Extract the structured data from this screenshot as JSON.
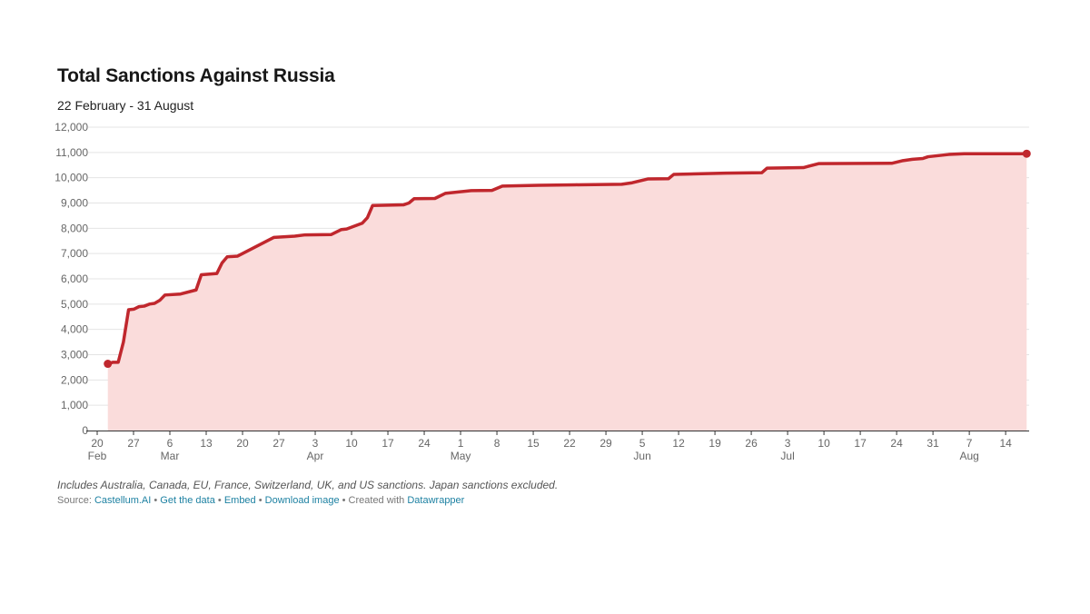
{
  "title": "Total Sanctions Against Russia",
  "subtitle": "22 February - 31 August",
  "notes": "Includes Australia, Canada, EU, France, Switzerland, UK, and US sanctions. Japan sanctions excluded.",
  "source": {
    "prefix": "Source: ",
    "source_name": "Castellum.AI",
    "sep1": " • ",
    "get_data": "Get the data",
    "sep2": " • ",
    "embed": "Embed",
    "sep3": " • ",
    "download": "Download image",
    "sep4": " • Created with ",
    "tool": "Datawrapper"
  },
  "colors": {
    "line": "#c0272d",
    "area": "#fadcdb",
    "grid": "#e4e4e4",
    "axis": "#333333",
    "link": "#1d81a2"
  },
  "chart_data": {
    "type": "area",
    "title": "Total Sanctions Against Russia",
    "subtitle": "22 February - 31 August",
    "xlabel": "",
    "ylabel": "",
    "ylim": [
      0,
      12000
    ],
    "yticks": [
      0,
      1000,
      2000,
      3000,
      4000,
      5000,
      6000,
      7000,
      8000,
      9000,
      10000,
      11000,
      12000
    ],
    "ytick_labels": [
      "0",
      "1,000",
      "2,000",
      "3,000",
      "4,000",
      "5,000",
      "6,000",
      "7,000",
      "8,000",
      "9,000",
      "10,000",
      "11,000",
      "12,000"
    ],
    "xlim": [
      "2022-02-20",
      "2022-08-21"
    ],
    "xticks": [
      {
        "date": "2022-02-20",
        "day": "20",
        "month": "Feb"
      },
      {
        "date": "2022-02-27",
        "day": "27",
        "month": ""
      },
      {
        "date": "2022-03-06",
        "day": "6",
        "month": "Mar"
      },
      {
        "date": "2022-03-13",
        "day": "13",
        "month": ""
      },
      {
        "date": "2022-03-20",
        "day": "20",
        "month": ""
      },
      {
        "date": "2022-03-27",
        "day": "27",
        "month": ""
      },
      {
        "date": "2022-04-03",
        "day": "3",
        "month": "Apr"
      },
      {
        "date": "2022-04-10",
        "day": "10",
        "month": ""
      },
      {
        "date": "2022-04-17",
        "day": "17",
        "month": ""
      },
      {
        "date": "2022-04-24",
        "day": "24",
        "month": ""
      },
      {
        "date": "2022-05-01",
        "day": "1",
        "month": "May"
      },
      {
        "date": "2022-05-08",
        "day": "8",
        "month": ""
      },
      {
        "date": "2022-05-15",
        "day": "15",
        "month": ""
      },
      {
        "date": "2022-05-22",
        "day": "22",
        "month": ""
      },
      {
        "date": "2022-05-29",
        "day": "29",
        "month": ""
      },
      {
        "date": "2022-06-05",
        "day": "5",
        "month": "Jun"
      },
      {
        "date": "2022-06-12",
        "day": "12",
        "month": ""
      },
      {
        "date": "2022-06-19",
        "day": "19",
        "month": ""
      },
      {
        "date": "2022-06-26",
        "day": "26",
        "month": ""
      },
      {
        "date": "2022-07-03",
        "day": "3",
        "month": "Jul"
      },
      {
        "date": "2022-07-10",
        "day": "10",
        "month": ""
      },
      {
        "date": "2022-07-17",
        "day": "17",
        "month": ""
      },
      {
        "date": "2022-07-24",
        "day": "24",
        "month": ""
      },
      {
        "date": "2022-07-31",
        "day": "31",
        "month": ""
      },
      {
        "date": "2022-08-07",
        "day": "7",
        "month": "Aug"
      },
      {
        "date": "2022-08-14",
        "day": "14",
        "month": ""
      }
    ],
    "grid": true,
    "series": [
      {
        "points": [
          {
            "x": "2022-02-21",
            "y": 2640
          },
          {
            "x": "2022-02-22",
            "y": 2700
          },
          {
            "x": "2022-02-23",
            "y": 2700
          },
          {
            "x": "2022-02-24",
            "y": 3500
          },
          {
            "x": "2022-02-25",
            "y": 4780
          },
          {
            "x": "2022-02-26",
            "y": 4800
          },
          {
            "x": "2022-02-27",
            "y": 4900
          },
          {
            "x": "2022-02-28",
            "y": 4920
          },
          {
            "x": "2022-03-01",
            "y": 5000
          },
          {
            "x": "2022-03-02",
            "y": 5030
          },
          {
            "x": "2022-03-03",
            "y": 5150
          },
          {
            "x": "2022-03-04",
            "y": 5360
          },
          {
            "x": "2022-03-07",
            "y": 5400
          },
          {
            "x": "2022-03-10",
            "y": 5560
          },
          {
            "x": "2022-03-11",
            "y": 6160
          },
          {
            "x": "2022-03-14",
            "y": 6210
          },
          {
            "x": "2022-03-15",
            "y": 6630
          },
          {
            "x": "2022-03-16",
            "y": 6870
          },
          {
            "x": "2022-03-18",
            "y": 6900
          },
          {
            "x": "2022-03-25",
            "y": 7640
          },
          {
            "x": "2022-03-29",
            "y": 7690
          },
          {
            "x": "2022-03-31",
            "y": 7740
          },
          {
            "x": "2022-04-05",
            "y": 7750
          },
          {
            "x": "2022-04-07",
            "y": 7950
          },
          {
            "x": "2022-04-08",
            "y": 7970
          },
          {
            "x": "2022-04-11",
            "y": 8200
          },
          {
            "x": "2022-04-12",
            "y": 8420
          },
          {
            "x": "2022-04-13",
            "y": 8900
          },
          {
            "x": "2022-04-19",
            "y": 8930
          },
          {
            "x": "2022-04-20",
            "y": 9000
          },
          {
            "x": "2022-04-21",
            "y": 9170
          },
          {
            "x": "2022-04-25",
            "y": 9180
          },
          {
            "x": "2022-04-27",
            "y": 9380
          },
          {
            "x": "2022-05-02",
            "y": 9490
          },
          {
            "x": "2022-05-06",
            "y": 9500
          },
          {
            "x": "2022-05-08",
            "y": 9670
          },
          {
            "x": "2022-05-15",
            "y": 9700
          },
          {
            "x": "2022-05-22",
            "y": 9720
          },
          {
            "x": "2022-05-31",
            "y": 9740
          },
          {
            "x": "2022-06-02",
            "y": 9800
          },
          {
            "x": "2022-06-05",
            "y": 9950
          },
          {
            "x": "2022-06-09",
            "y": 9960
          },
          {
            "x": "2022-06-10",
            "y": 10130
          },
          {
            "x": "2022-06-20",
            "y": 10180
          },
          {
            "x": "2022-06-27",
            "y": 10200
          },
          {
            "x": "2022-06-28",
            "y": 10380
          },
          {
            "x": "2022-07-05",
            "y": 10400
          },
          {
            "x": "2022-07-08",
            "y": 10560
          },
          {
            "x": "2022-07-22",
            "y": 10570
          },
          {
            "x": "2022-07-24",
            "y": 10670
          },
          {
            "x": "2022-07-26",
            "y": 10730
          },
          {
            "x": "2022-07-28",
            "y": 10760
          },
          {
            "x": "2022-07-29",
            "y": 10830
          },
          {
            "x": "2022-08-02",
            "y": 10920
          },
          {
            "x": "2022-08-05",
            "y": 10950
          },
          {
            "x": "2022-08-17",
            "y": 10950
          }
        ]
      }
    ]
  }
}
